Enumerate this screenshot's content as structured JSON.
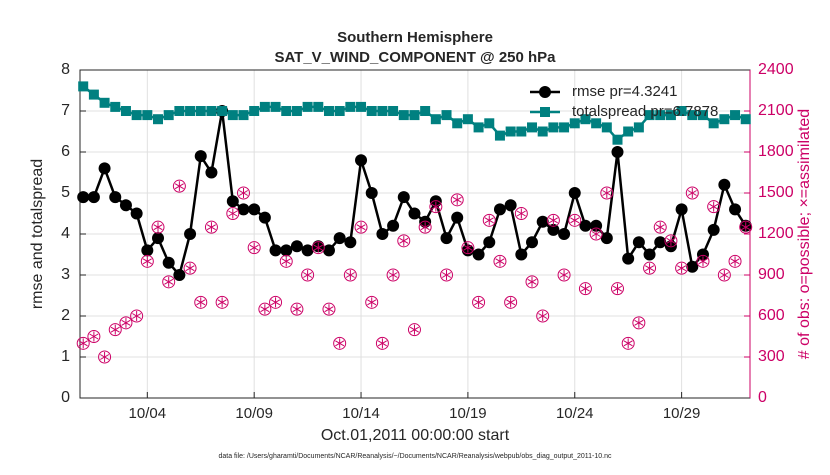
{
  "chart_data": {
    "type": "line",
    "title": "Southern Hemisphere",
    "subtitle": "SAT_V_WIND_COMPONENT @ 250 hPa",
    "xlabel": "Oct.01,2011 00:00:00 start",
    "ylabel": "rmse and totalspread",
    "y2label": "# of obs: o=possible; ×=assimilated",
    "footnote": "data file: /Users/gharamti/Documents/NCAR/Reanalysis/~/Documents/NCAR/Reanalysis/webpub/obs_diag_output_2011-10.nc",
    "x": [
      0,
      0.5,
      1,
      1.5,
      2,
      2.5,
      3,
      3.5,
      4,
      4.5,
      5,
      5.5,
      6,
      6.5,
      7,
      7.5,
      8,
      8.5,
      9,
      9.5,
      10,
      10.5,
      11,
      11.5,
      12,
      12.5,
      13,
      13.5,
      14,
      14.5,
      15,
      15.5,
      16,
      16.5,
      17,
      17.5,
      18,
      18.5,
      19,
      19.5,
      20,
      20.5,
      21,
      21.5,
      22,
      22.5,
      23,
      23.5,
      24,
      24.5,
      25,
      25.5,
      26,
      26.5,
      27,
      27.5,
      28,
      28.5,
      29,
      29.5,
      30,
      30.5,
      31
    ],
    "series": [
      {
        "name": "rmse pr=4.3241",
        "color": "#000000",
        "marker": "dot",
        "values": [
          4.9,
          4.9,
          5.6,
          4.9,
          4.7,
          4.5,
          3.6,
          3.9,
          3.3,
          3.0,
          4.0,
          5.9,
          5.5,
          7.0,
          4.8,
          4.6,
          4.6,
          4.4,
          3.6,
          3.6,
          3.7,
          3.6,
          3.7,
          3.6,
          3.9,
          3.8,
          5.8,
          5.0,
          4.0,
          4.2,
          4.9,
          4.5,
          4.3,
          4.8,
          3.9,
          4.4,
          3.6,
          3.5,
          3.8,
          4.6,
          4.7,
          3.5,
          3.8,
          4.3,
          4.1,
          4.0,
          5.0,
          4.2,
          4.2,
          3.9,
          6.0,
          3.4,
          3.8,
          3.5,
          3.8,
          3.7,
          4.6,
          3.2,
          3.5,
          4.1,
          5.2,
          4.6,
          4.2
        ]
      },
      {
        "name": "totalspread pr=6.7878",
        "color": "#008080",
        "marker": "square",
        "values": [
          7.6,
          7.4,
          7.2,
          7.1,
          7.0,
          6.9,
          6.9,
          6.8,
          6.9,
          7.0,
          7.0,
          7.0,
          7.0,
          7.0,
          6.9,
          6.9,
          7.0,
          7.1,
          7.1,
          7.0,
          7.0,
          7.1,
          7.1,
          7.0,
          7.0,
          7.1,
          7.1,
          7.0,
          7.0,
          7.0,
          6.9,
          6.9,
          7.0,
          6.8,
          6.9,
          6.7,
          6.8,
          6.6,
          6.7,
          6.4,
          6.5,
          6.5,
          6.6,
          6.5,
          6.6,
          6.6,
          6.7,
          6.8,
          6.7,
          6.6,
          6.3,
          6.5,
          6.6,
          6.9,
          6.9,
          6.9,
          7.0,
          6.9,
          6.9,
          6.7,
          6.8,
          6.9,
          6.8
        ]
      },
      {
        "axis": "y2",
        "color": "#cc0066",
        "marker": "circle",
        "values": [
          400,
          450,
          300,
          500,
          550,
          600,
          1000,
          1250,
          850,
          1550,
          950,
          700,
          1250,
          700,
          1350,
          1500,
          1100,
          650,
          700,
          1000,
          650,
          900,
          1100,
          650,
          400,
          900,
          1250,
          700,
          400,
          900,
          1150,
          500,
          1250,
          1400,
          900,
          1450,
          1100,
          700,
          1300,
          1000,
          700,
          1350,
          850,
          600,
          1300,
          900,
          1300,
          800,
          1200,
          1500,
          800,
          400,
          550,
          950,
          1250,
          1150,
          950,
          1500,
          1000,
          1400,
          900,
          1000,
          1250
        ]
      },
      {
        "axis": "y2",
        "color": "#cc0066",
        "marker": "asterisk",
        "values": [
          400,
          450,
          300,
          500,
          550,
          600,
          1000,
          1250,
          850,
          1550,
          950,
          700,
          1250,
          700,
          1350,
          1500,
          1100,
          650,
          700,
          1000,
          650,
          900,
          1100,
          650,
          400,
          900,
          1250,
          700,
          400,
          900,
          1150,
          500,
          1250,
          1400,
          900,
          1450,
          1100,
          700,
          1300,
          1000,
          700,
          1350,
          850,
          600,
          1300,
          900,
          1300,
          800,
          1200,
          1500,
          800,
          400,
          550,
          950,
          1250,
          1150,
          950,
          1500,
          1000,
          1400,
          900,
          1000,
          1250
        ]
      }
    ],
    "xlim": [
      -0.15,
      31.2
    ],
    "xticks": [
      {
        "value": 3,
        "label": "10/04"
      },
      {
        "value": 8,
        "label": "10/09"
      },
      {
        "value": 13,
        "label": "10/14"
      },
      {
        "value": 18,
        "label": "10/19"
      },
      {
        "value": 23,
        "label": "10/24"
      },
      {
        "value": 28,
        "label": "10/29"
      }
    ],
    "ylim": [
      0,
      8
    ],
    "yticks": [
      0,
      1,
      2,
      3,
      4,
      5,
      6,
      7,
      8
    ],
    "y2lim": [
      0,
      2400
    ],
    "y2ticks": [
      0,
      300,
      600,
      900,
      1200,
      1500,
      1800,
      2100,
      2400
    ],
    "grid": true,
    "legend": "upper right"
  }
}
